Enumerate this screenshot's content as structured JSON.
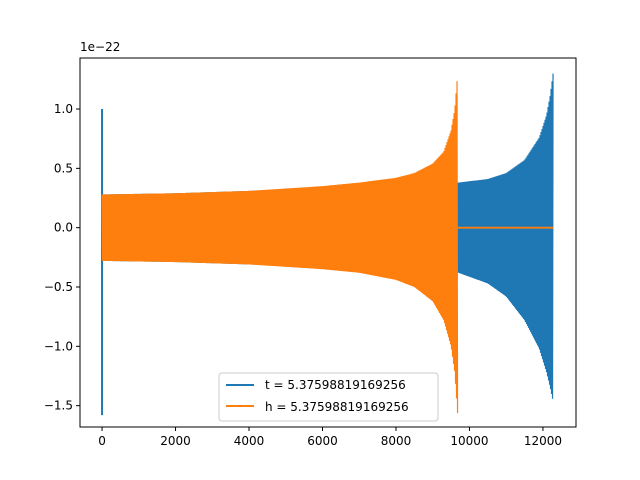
{
  "chart_data": {
    "type": "line",
    "y_offset_label": "1e−22",
    "xlim": [
      -600,
      12900
    ],
    "ylim": [
      -1.68,
      1.43
    ],
    "x_ticks": [
      {
        "value": 0,
        "label": "0"
      },
      {
        "value": 2000,
        "label": "2000"
      },
      {
        "value": 4000,
        "label": "4000"
      },
      {
        "value": 6000,
        "label": "6000"
      },
      {
        "value": 8000,
        "label": "8000"
      },
      {
        "value": 10000,
        "label": "10000"
      },
      {
        "value": 12000,
        "label": "12000"
      }
    ],
    "y_ticks": [
      {
        "value": 1.0,
        "label": "1.0"
      },
      {
        "value": 0.5,
        "label": "0.5"
      },
      {
        "value": 0.0,
        "label": "0.0"
      },
      {
        "value": -0.5,
        "label": "−0.5"
      },
      {
        "value": -1.0,
        "label": "−1.0"
      },
      {
        "value": -1.5,
        "label": "−1.5"
      }
    ],
    "series": [
      {
        "name": "t = 5.37598819169256",
        "color": "#1f77b4",
        "spike": {
          "x": 0,
          "ymin": -1.58,
          "ymax": 1.0
        },
        "upper": [
          [
            0,
            0.28
          ],
          [
            2000,
            0.29
          ],
          [
            4000,
            0.31
          ],
          [
            6000,
            0.33
          ],
          [
            8000,
            0.36
          ],
          [
            9700,
            0.38
          ],
          [
            10500,
            0.41
          ],
          [
            11000,
            0.46
          ],
          [
            11500,
            0.57
          ],
          [
            11900,
            0.76
          ],
          [
            12100,
            0.95
          ],
          [
            12200,
            1.12
          ],
          [
            12280,
            1.31
          ]
        ],
        "lower": [
          [
            0,
            -0.28
          ],
          [
            2000,
            -0.29
          ],
          [
            4000,
            -0.31
          ],
          [
            6000,
            -0.33
          ],
          [
            8000,
            -0.36
          ],
          [
            9700,
            -0.38
          ],
          [
            10500,
            -0.47
          ],
          [
            11000,
            -0.58
          ],
          [
            11500,
            -0.78
          ],
          [
            11900,
            -1.02
          ],
          [
            12100,
            -1.22
          ],
          [
            12200,
            -1.35
          ],
          [
            12280,
            -1.47
          ]
        ],
        "end_x": 12280
      },
      {
        "name": "h = 5.37598819169256",
        "color": "#ff7f0e",
        "upper": [
          [
            0,
            0.28
          ],
          [
            2000,
            0.29
          ],
          [
            4000,
            0.31
          ],
          [
            6000,
            0.35
          ],
          [
            7000,
            0.38
          ],
          [
            8000,
            0.42
          ],
          [
            8500,
            0.46
          ],
          [
            9000,
            0.54
          ],
          [
            9300,
            0.64
          ],
          [
            9500,
            0.82
          ],
          [
            9600,
            1.0
          ],
          [
            9680,
            1.3
          ]
        ],
        "lower": [
          [
            0,
            -0.28
          ],
          [
            2000,
            -0.29
          ],
          [
            4000,
            -0.31
          ],
          [
            6000,
            -0.35
          ],
          [
            7000,
            -0.38
          ],
          [
            8000,
            -0.44
          ],
          [
            8500,
            -0.5
          ],
          [
            9000,
            -0.62
          ],
          [
            9300,
            -0.78
          ],
          [
            9500,
            -1.0
          ],
          [
            9600,
            -1.22
          ],
          [
            9680,
            -1.58
          ]
        ],
        "end_x": 9680,
        "flat": {
          "x_start": 9680,
          "x_end": 12280,
          "y": 0.0
        }
      }
    ],
    "legend_position": "lower center"
  }
}
